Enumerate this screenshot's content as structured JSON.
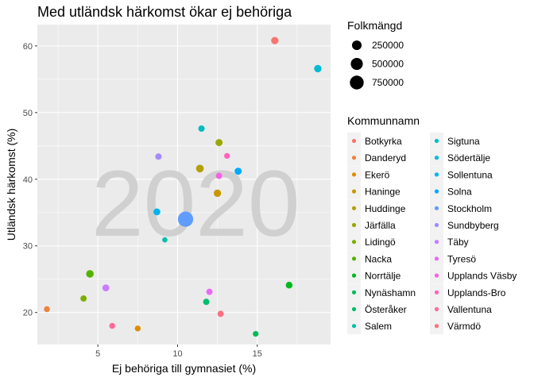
{
  "chart_data": {
    "type": "scatter",
    "title": "Med utländsk härkomst ökar ej behöriga",
    "xlabel": "Ej behöriga till gymnasiet (%)",
    "ylabel": "Utländsk härkomst (%)",
    "watermark": "2020",
    "xlim": [
      1.2,
      19.6
    ],
    "ylim": [
      15.2,
      63.2
    ],
    "xticks": [
      5,
      10,
      15
    ],
    "yticks": [
      20,
      30,
      40,
      50,
      60
    ],
    "grid": true,
    "size_legend": {
      "title": "Folkmängd",
      "entries": [
        {
          "label": "250000",
          "value": 250000
        },
        {
          "label": "500000",
          "value": 500000
        },
        {
          "label": "750000",
          "value": 750000
        }
      ]
    },
    "color_legend": {
      "title": "Kommunnamn",
      "placement": "right",
      "entries": [
        {
          "name": "Botkyrka",
          "color": "#F8766D"
        },
        {
          "name": "Danderyd",
          "color": "#EC823C"
        },
        {
          "name": "Ekerö",
          "color": "#DC8E00"
        },
        {
          "name": "Haninge",
          "color": "#C99800"
        },
        {
          "name": "Huddinge",
          "color": "#B3A000"
        },
        {
          "name": "Järfälla",
          "color": "#99A800"
        },
        {
          "name": "Lidingö",
          "color": "#7CAE00"
        },
        {
          "name": "Nacka",
          "color": "#53B400"
        },
        {
          "name": "Norrtälje",
          "color": "#00B81F"
        },
        {
          "name": "Nynäshamn",
          "color": "#00BC56"
        },
        {
          "name": "Österåker",
          "color": "#00BE6C"
        },
        {
          "name": "Salem",
          "color": "#00C1A7"
        },
        {
          "name": "Sigtuna",
          "color": "#00BDC2"
        },
        {
          "name": "Södertälje",
          "color": "#00BAD5"
        },
        {
          "name": "Sollentuna",
          "color": "#00B4EF"
        },
        {
          "name": "Solna",
          "color": "#00A9FF"
        },
        {
          "name": "Stockholm",
          "color": "#619CFF"
        },
        {
          "name": "Sundbyberg",
          "color": "#A58AFF"
        },
        {
          "name": "Täby",
          "color": "#C77CFF"
        },
        {
          "name": "Tyresö",
          "color": "#E76BF3"
        },
        {
          "name": "Upplands Väsby",
          "color": "#F564E3"
        },
        {
          "name": "Upplands-Bro",
          "color": "#FF62BC"
        },
        {
          "name": "Vallentuna",
          "color": "#FF6A98"
        },
        {
          "name": "Värmdö",
          "color": "#FC717F"
        }
      ]
    },
    "points": [
      {
        "x": 16.1,
        "y": 60.8,
        "size": 92000,
        "color": "#F8766D"
      },
      {
        "x": 1.8,
        "y": 20.5,
        "size": 33000,
        "color": "#EC823C"
      },
      {
        "x": 7.5,
        "y": 17.6,
        "size": 30000,
        "color": "#DC8E00"
      },
      {
        "x": 12.5,
        "y": 37.9,
        "size": 94000,
        "color": "#C99800"
      },
      {
        "x": 11.4,
        "y": 41.6,
        "size": 112000,
        "color": "#B3A000"
      },
      {
        "x": 12.6,
        "y": 45.5,
        "size": 80000,
        "color": "#99A800"
      },
      {
        "x": 4.1,
        "y": 22.1,
        "size": 47000,
        "color": "#7CAE00"
      },
      {
        "x": 4.5,
        "y": 25.8,
        "size": 105000,
        "color": "#53B400"
      },
      {
        "x": 17.0,
        "y": 24.1,
        "size": 64000,
        "color": "#00B81F"
      },
      {
        "x": 14.9,
        "y": 16.8,
        "size": 28000,
        "color": "#00BC56"
      },
      {
        "x": 11.8,
        "y": 21.6,
        "size": 47000,
        "color": "#00BE6C"
      },
      {
        "x": 9.2,
        "y": 30.9,
        "size": 17000,
        "color": "#00C1A7"
      },
      {
        "x": 11.5,
        "y": 47.6,
        "size": 49000,
        "color": "#00BDC2"
      },
      {
        "x": 18.8,
        "y": 56.6,
        "size": 100000,
        "color": "#00BAD5"
      },
      {
        "x": 8.7,
        "y": 35.1,
        "size": 74000,
        "color": "#00B4EF"
      },
      {
        "x": 13.8,
        "y": 41.2,
        "size": 82000,
        "color": "#00A9FF"
      },
      {
        "x": 10.5,
        "y": 34.0,
        "size": 975000,
        "color": "#619CFF"
      },
      {
        "x": 8.8,
        "y": 43.4,
        "size": 51000,
        "color": "#A58AFF"
      },
      {
        "x": 5.5,
        "y": 23.7,
        "size": 73000,
        "color": "#C77CFF"
      },
      {
        "x": 12.0,
        "y": 23.1,
        "size": 48000,
        "color": "#E76BF3"
      },
      {
        "x": 12.6,
        "y": 40.5,
        "size": 47000,
        "color": "#F564E3"
      },
      {
        "x": 13.1,
        "y": 43.5,
        "size": 28000,
        "color": "#FF62BC"
      },
      {
        "x": 5.9,
        "y": 18.0,
        "size": 34000,
        "color": "#FF6A98"
      },
      {
        "x": 12.7,
        "y": 19.8,
        "size": 45000,
        "color": "#FC717F"
      }
    ]
  }
}
